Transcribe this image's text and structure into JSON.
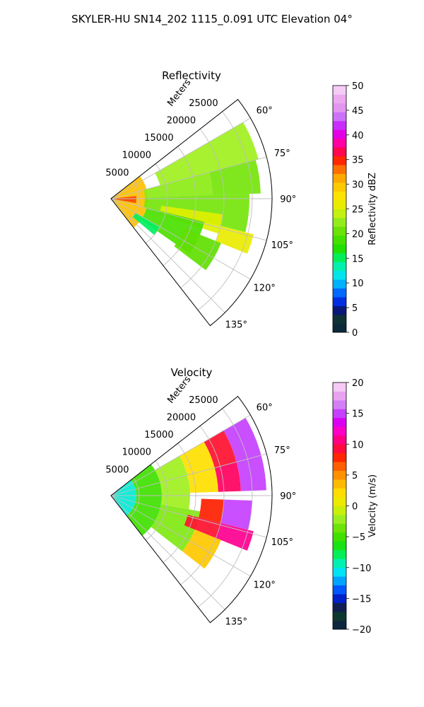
{
  "figure": {
    "suptitle": "SKYLER-HU  SN14_202  1115_0.091 UTC Elevation 04°"
  },
  "colors": {
    "grid": "#bfbfbf",
    "frame": "#000000",
    "background": "#ffffff"
  },
  "chart_data": [
    {
      "type": "polar-sector-heatmap",
      "title": "Reflectivity",
      "radial_axis_label": "Meters",
      "range_ticks": [
        5000,
        10000,
        15000,
        20000,
        25000
      ],
      "range_tick_labels": [
        "5000",
        "10000",
        "15000",
        "20000",
        "25000"
      ],
      "range_max": 28500,
      "azimuth_range_deg": [
        52,
        142
      ],
      "azimuth_ticks": [
        60,
        75,
        90,
        105,
        120,
        135
      ],
      "azimuth_tick_labels": [
        "60°",
        "75°",
        "90°",
        "105°",
        "120°",
        "135°"
      ],
      "grid": true,
      "colorbar": {
        "label": "Reflectivity dBZ",
        "min": 0,
        "max": 50,
        "ticks": [
          "0",
          "5",
          "10",
          "15",
          "20",
          "25",
          "30",
          "35",
          "40",
          "45",
          "50"
        ],
        "stops": [
          {
            "v": 0,
            "c": "#0b1a4a"
          },
          {
            "v": 2,
            "c": "#0d3b2a"
          },
          {
            "v": 4,
            "c": "#11204a"
          },
          {
            "v": 5,
            "c": "#0010b0"
          },
          {
            "v": 7,
            "c": "#0040ff"
          },
          {
            "v": 9,
            "c": "#0090ff"
          },
          {
            "v": 11,
            "c": "#00e0ff"
          },
          {
            "v": 13,
            "c": "#00f0c0"
          },
          {
            "v": 15,
            "c": "#00f060"
          },
          {
            "v": 17,
            "c": "#20e000"
          },
          {
            "v": 20,
            "c": "#60e000"
          },
          {
            "v": 23,
            "c": "#a0f020"
          },
          {
            "v": 25,
            "c": "#e0f000"
          },
          {
            "v": 28,
            "c": "#ffe000"
          },
          {
            "v": 31,
            "c": "#ffb000"
          },
          {
            "v": 33,
            "c": "#ff7000"
          },
          {
            "v": 35,
            "c": "#ff2000"
          },
          {
            "v": 37,
            "c": "#ff0060"
          },
          {
            "v": 39,
            "c": "#ff00c0"
          },
          {
            "v": 41,
            "c": "#d000ff"
          },
          {
            "v": 43,
            "c": "#c060ff"
          },
          {
            "v": 45,
            "c": "#e090f0"
          },
          {
            "v": 48,
            "c": "#f0b0f0"
          },
          {
            "v": 50,
            "c": "#fbe0fb"
          }
        ]
      },
      "echoes": [
        {
          "a0": 52,
          "a1": 142,
          "r0": 0,
          "r1": 6500,
          "value": 30
        },
        {
          "a0": 84,
          "a1": 100,
          "r0": 0,
          "r1": 4500,
          "value": 34
        },
        {
          "a0": 60,
          "a1": 75,
          "r0": 9000,
          "r1": 27000,
          "value": 23
        },
        {
          "a0": 75,
          "a1": 88,
          "r0": 6000,
          "r1": 18000,
          "value": 22
        },
        {
          "a0": 75,
          "a1": 88,
          "r0": 18000,
          "r1": 26500,
          "value": 21
        },
        {
          "a0": 88,
          "a1": 104,
          "r0": 6000,
          "r1": 24500,
          "value": 21
        },
        {
          "a0": 98,
          "a1": 108,
          "r0": 9000,
          "r1": 20000,
          "value": 25
        },
        {
          "a0": 104,
          "a1": 112,
          "r0": 20000,
          "r1": 26000,
          "value": 26
        },
        {
          "a0": 104,
          "a1": 125,
          "r0": 6500,
          "r1": 17000,
          "value": 19
        },
        {
          "a0": 112,
          "a1": 127,
          "r0": 14000,
          "r1": 21000,
          "value": 20
        },
        {
          "a0": 120,
          "a1": 130,
          "r0": 5000,
          "r1": 10000,
          "value": 15
        }
      ]
    },
    {
      "type": "polar-sector-heatmap",
      "title": "Velocity",
      "radial_axis_label": "Meters",
      "range_ticks": [
        5000,
        10000,
        15000,
        20000,
        25000
      ],
      "range_tick_labels": [
        "5000",
        "10000",
        "15000",
        "20000",
        "25000"
      ],
      "range_max": 28500,
      "azimuth_range_deg": [
        52,
        142
      ],
      "azimuth_ticks": [
        60,
        75,
        90,
        105,
        120,
        135
      ],
      "azimuth_tick_labels": [
        "60°",
        "75°",
        "90°",
        "105°",
        "120°",
        "135°"
      ],
      "grid": true,
      "colorbar": {
        "label": "Velocity (m/s)",
        "min": -20,
        "max": 20,
        "ticks": [
          "−20",
          "−15",
          "−10",
          "−5",
          "0",
          "5",
          "10",
          "15",
          "20"
        ],
        "stops": [
          {
            "v": -20,
            "c": "#0b1a4a"
          },
          {
            "v": -18,
            "c": "#0d3b2a"
          },
          {
            "v": -16.5,
            "c": "#11204a"
          },
          {
            "v": -15.5,
            "c": "#0010b0"
          },
          {
            "v": -14,
            "c": "#0040ff"
          },
          {
            "v": -12.5,
            "c": "#0090ff"
          },
          {
            "v": -11,
            "c": "#00e0ff"
          },
          {
            "v": -9.5,
            "c": "#00f0c0"
          },
          {
            "v": -8,
            "c": "#00f060"
          },
          {
            "v": -6,
            "c": "#20e000"
          },
          {
            "v": -4,
            "c": "#60e000"
          },
          {
            "v": -2,
            "c": "#a0f020"
          },
          {
            "v": 0,
            "c": "#e0f000"
          },
          {
            "v": 2,
            "c": "#ffe000"
          },
          {
            "v": 4,
            "c": "#ffb000"
          },
          {
            "v": 6,
            "c": "#ff7000"
          },
          {
            "v": 8,
            "c": "#ff2000"
          },
          {
            "v": 10,
            "c": "#ff0060"
          },
          {
            "v": 12,
            "c": "#ff00c0"
          },
          {
            "v": 14,
            "c": "#d000ff"
          },
          {
            "v": 15.5,
            "c": "#c060ff"
          },
          {
            "v": 17,
            "c": "#e090f0"
          },
          {
            "v": 18.5,
            "c": "#f0b0f0"
          },
          {
            "v": 20,
            "c": "#fbe0fb"
          }
        ]
      },
      "echoes": [
        {
          "a0": 52,
          "a1": 142,
          "r0": 0,
          "r1": 4500,
          "value": -10
        },
        {
          "a0": 52,
          "a1": 142,
          "r0": 4500,
          "r1": 9000,
          "value": -5
        },
        {
          "a0": 60,
          "a1": 100,
          "r0": 9000,
          "r1": 14000,
          "value": -2
        },
        {
          "a0": 100,
          "a1": 128,
          "r0": 9000,
          "r1": 16000,
          "value": -3
        },
        {
          "a0": 60,
          "a1": 88,
          "r0": 14000,
          "r1": 19000,
          "value": 2
        },
        {
          "a0": 60,
          "a1": 75,
          "r0": 19000,
          "r1": 23000,
          "value": 9
        },
        {
          "a0": 60,
          "a1": 88,
          "r0": 23000,
          "r1": 27500,
          "value": 15
        },
        {
          "a0": 75,
          "a1": 88,
          "r0": 19000,
          "r1": 23000,
          "value": 10
        },
        {
          "a0": 92,
          "a1": 104,
          "r0": 16000,
          "r1": 20000,
          "value": 8
        },
        {
          "a0": 92,
          "a1": 104,
          "r0": 20000,
          "r1": 25000,
          "value": 15
        },
        {
          "a0": 104,
          "a1": 112,
          "r0": 14000,
          "r1": 20000,
          "value": 9
        },
        {
          "a0": 104,
          "a1": 112,
          "r0": 20000,
          "r1": 26000,
          "value": 11
        },
        {
          "a0": 112,
          "a1": 128,
          "r0": 16000,
          "r1": 21000,
          "value": 3
        }
      ]
    }
  ]
}
